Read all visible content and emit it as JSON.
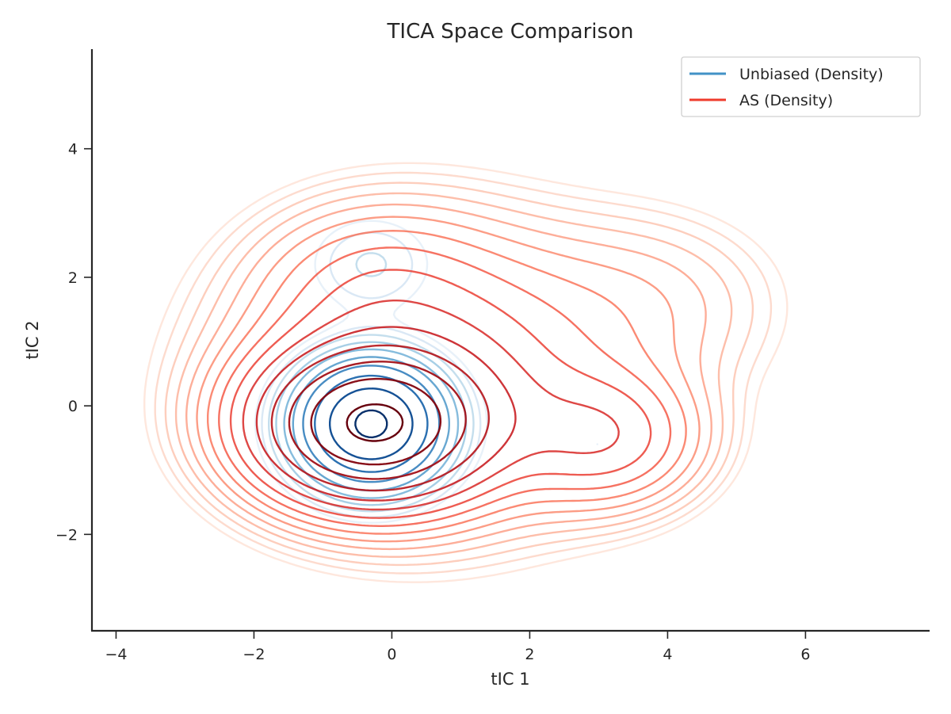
{
  "chart_data": {
    "type": "contour",
    "title": "TICA Space Comparison",
    "xlabel": "tIC 1",
    "ylabel": "tIC 2",
    "xlim": [
      -4.35,
      7.8
    ],
    "ylim": [
      -3.5,
      5.55
    ],
    "xticks": [
      -4,
      -2,
      0,
      2,
      4,
      6
    ],
    "yticks": [
      -2,
      0,
      2,
      4
    ],
    "xtick_labels": [
      "−4",
      "−2",
      "0",
      "2",
      "4",
      "6"
    ],
    "ytick_labels": [
      "−2",
      "0",
      "2",
      "4"
    ],
    "grid": false,
    "legend_position": "top-right",
    "series": [
      {
        "name": "Unbiased (Density)",
        "legend_color": "#4292c6",
        "colormap": "Blues",
        "levels": 10,
        "components": [
          {
            "mx": -0.3,
            "my": -0.28,
            "sx": 0.6,
            "sy": 0.55,
            "w": 1.0
          },
          {
            "mx": -0.3,
            "my": 2.2,
            "sx": 0.6,
            "sy": 0.5,
            "w": 0.05
          },
          {
            "mx": 3.0,
            "my": -0.6,
            "sx": 0.4,
            "sy": 0.35,
            "w": 0.02
          }
        ]
      },
      {
        "name": "AS (Density)",
        "legend_color": "#ef3b2c",
        "colormap": "Reds",
        "levels": 15,
        "components": [
          {
            "mx": -0.3,
            "my": -0.3,
            "sx": 1.0,
            "sy": 0.7,
            "w": 1.0
          },
          {
            "mx": 0.6,
            "my": 0.5,
            "sx": 1.7,
            "sy": 1.35,
            "w": 0.22
          },
          {
            "mx": 3.1,
            "my": -0.5,
            "sx": 0.85,
            "sy": 0.65,
            "w": 0.18
          },
          {
            "mx": 3.8,
            "my": 1.6,
            "sx": 1.2,
            "sy": 0.9,
            "w": 0.045
          },
          {
            "mx": -0.3,
            "my": 1.9,
            "sx": 1.0,
            "sy": 0.75,
            "w": 0.07
          }
        ]
      }
    ]
  }
}
